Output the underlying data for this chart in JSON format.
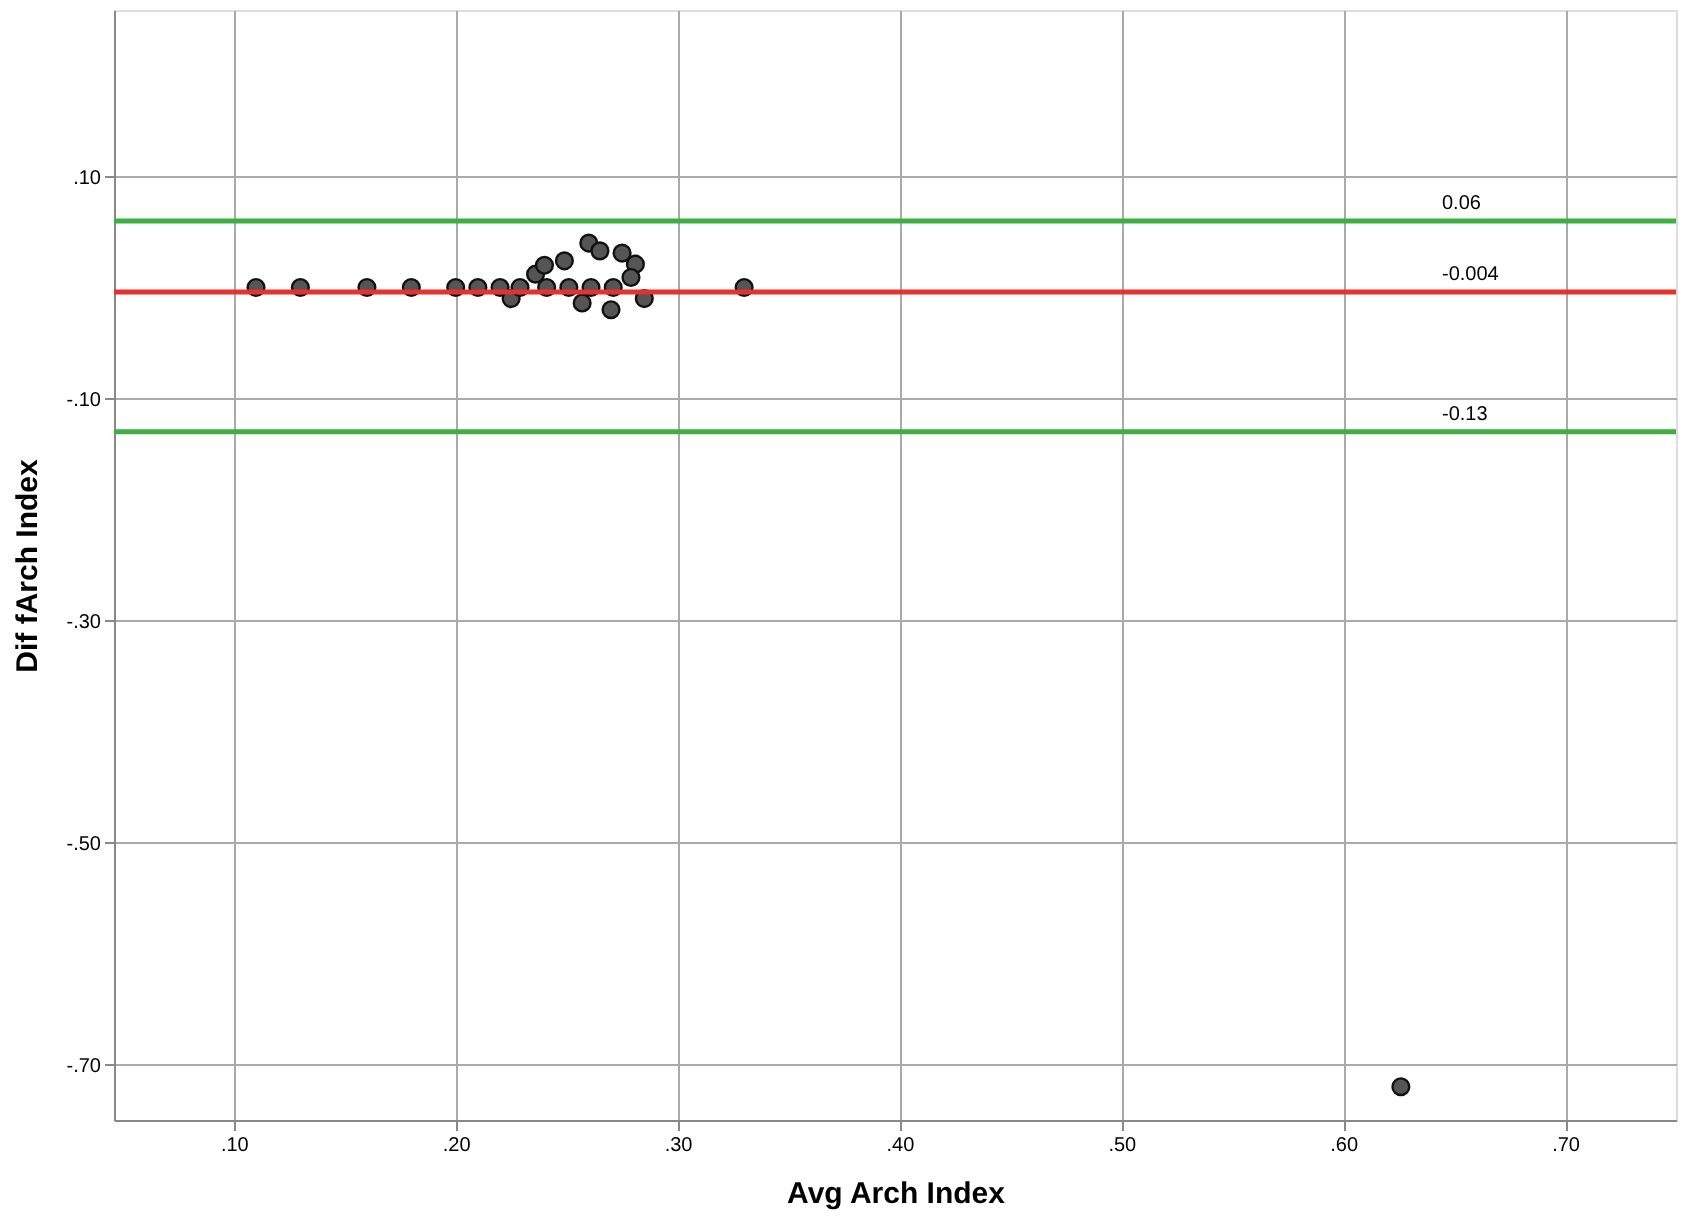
{
  "chart_data": {
    "type": "scatter",
    "xlabel": "Avg Arch Index",
    "ylabel": "Dif fArch Index",
    "x": [
      0.11,
      0.13,
      0.16,
      0.18,
      0.2,
      0.21,
      0.22,
      0.225,
      0.229,
      0.235,
      0.236,
      0.24,
      0.241,
      0.249,
      0.251,
      0.257,
      0.26,
      0.261,
      0.265,
      0.27,
      0.271,
      0.275,
      0.278,
      0.281,
      0.279,
      0.285,
      0.33,
      0.626
    ],
    "series": [
      {
        "color": "#555555",
        "values": [
          0.0,
          0.0,
          0.0,
          0.0,
          0.0,
          0.0,
          0.0,
          -0.01,
          0.0,
          null,
          0.012,
          0.02,
          0.0,
          0.024,
          0.0,
          -0.014,
          0.04,
          0.0,
          0.033,
          -0.02,
          0.0,
          0.031,
          null,
          0.021,
          0.009,
          -0.01,
          0.0,
          -0.72
        ]
      }
    ],
    "marker": "circle",
    "xlim": [
      0.046,
      0.75
    ],
    "xticks": [
      {
        "value": 0.1,
        "label": ".10"
      },
      {
        "value": 0.2,
        "label": ".20"
      },
      {
        "value": 0.3,
        "label": ".30"
      },
      {
        "value": 0.4,
        "label": ".40"
      },
      {
        "value": 0.5,
        "label": ".50"
      },
      {
        "value": 0.6,
        "label": ".60"
      },
      {
        "value": 0.7,
        "label": ".70"
      }
    ],
    "ylim": [
      -0.75,
      0.25
    ],
    "yticks": [
      {
        "value": 0.1,
        "label": ".10"
      },
      {
        "value": -0.1,
        "label": "-.10"
      },
      {
        "value": -0.3,
        "label": "-.30"
      },
      {
        "value": -0.5,
        "label": "-.50"
      },
      {
        "value": -0.7,
        "label": "-.70"
      }
    ],
    "grid": true,
    "ref_lines": [
      {
        "axis": "y",
        "value": 0.06,
        "label": "0.06",
        "color": "#3cb043"
      },
      {
        "axis": "y",
        "value": -0.004,
        "label": "-0.004",
        "color": "#e8312e"
      },
      {
        "axis": "y",
        "value": -0.13,
        "label": "-0.13",
        "color": "#3cb043"
      }
    ]
  }
}
